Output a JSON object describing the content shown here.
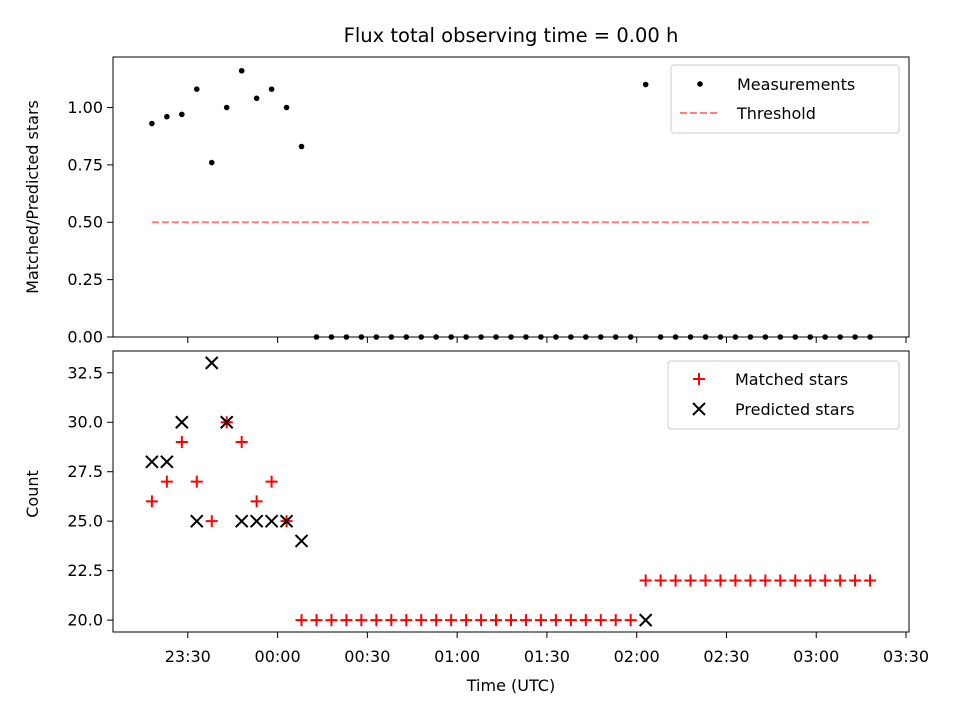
{
  "chart_data": [
    {
      "type": "scatter",
      "title": "Flux total observing time = 0.00 h",
      "xlabel": "",
      "ylabel": "Matched/Predicted stars",
      "x_unit": "UTC time",
      "xlim": [
        "23:05",
        "03:31"
      ],
      "ylim": [
        0,
        1.22
      ],
      "yticks": [
        "0.00",
        "0.25",
        "0.50",
        "0.75",
        "1.00"
      ],
      "ytick_values": [
        0,
        0.25,
        0.5,
        0.75,
        1.0
      ],
      "legend_position": "upper right",
      "series": [
        {
          "name": "Measurements",
          "marker": "dot",
          "color": "#000000",
          "x": [
            "23:18",
            "23:23",
            "23:28",
            "23:33",
            "23:38",
            "23:43",
            "23:48",
            "23:53",
            "23:58",
            "00:03",
            "00:08",
            "00:13",
            "00:18",
            "00:23",
            "00:28",
            "00:33",
            "00:38",
            "00:43",
            "00:48",
            "00:53",
            "00:58",
            "01:03",
            "01:08",
            "01:13",
            "01:18",
            "01:23",
            "01:28",
            "01:33",
            "01:38",
            "01:43",
            "01:48",
            "01:53",
            "01:58",
            "02:03",
            "02:08",
            "02:13",
            "02:18",
            "02:23",
            "02:28",
            "02:33",
            "02:38",
            "02:43",
            "02:48",
            "02:53",
            "02:58",
            "03:03",
            "03:08",
            "03:13",
            "03:18"
          ],
          "y": [
            0.93,
            0.96,
            0.97,
            1.08,
            0.76,
            1.0,
            1.16,
            1.04,
            1.08,
            1.0,
            0.83,
            0,
            0,
            0,
            0,
            0,
            0,
            0,
            0,
            0,
            0,
            0,
            0,
            0,
            0,
            0,
            0,
            0,
            0,
            0,
            0,
            0,
            0,
            1.1,
            0,
            0,
            0,
            0,
            0,
            0,
            0,
            0,
            0,
            0,
            0,
            0,
            0,
            0,
            0
          ]
        },
        {
          "name": "Threshold",
          "style": "dashed",
          "color": "#ff7f7f",
          "x": [
            "23:18",
            "03:18"
          ],
          "y": [
            0.5,
            0.5
          ]
        }
      ]
    },
    {
      "type": "scatter",
      "title": "",
      "xlabel": "Time (UTC)",
      "ylabel": "Count",
      "xlim": [
        "23:05",
        "03:31"
      ],
      "xticks": [
        "23:30",
        "00:00",
        "00:30",
        "01:00",
        "01:30",
        "02:00",
        "02:30",
        "03:00",
        "03:30"
      ],
      "ylim": [
        19.4,
        33.6
      ],
      "yticks": [
        "20.0",
        "22.5",
        "25.0",
        "27.5",
        "30.0",
        "32.5"
      ],
      "ytick_values": [
        20,
        22.5,
        25,
        27.5,
        30,
        32.5
      ],
      "legend_position": "upper right",
      "series": [
        {
          "name": "Matched stars",
          "marker": "plus",
          "color": "#ff0000",
          "x": [
            "23:18",
            "23:23",
            "23:28",
            "23:33",
            "23:38",
            "23:43",
            "23:48",
            "23:53",
            "23:58",
            "00:03",
            "00:08",
            "00:13",
            "00:18",
            "00:23",
            "00:28",
            "00:33",
            "00:38",
            "00:43",
            "00:48",
            "00:53",
            "00:58",
            "01:03",
            "01:08",
            "01:13",
            "01:18",
            "01:23",
            "01:28",
            "01:33",
            "01:38",
            "01:43",
            "01:48",
            "01:53",
            "01:58",
            "02:03",
            "02:08",
            "02:13",
            "02:18",
            "02:23",
            "02:28",
            "02:33",
            "02:38",
            "02:43",
            "02:48",
            "02:53",
            "02:58",
            "03:03",
            "03:08",
            "03:13",
            "03:18"
          ],
          "y": [
            26,
            27,
            29,
            27,
            25,
            30,
            29,
            26,
            27,
            25,
            20,
            20,
            20,
            20,
            20,
            20,
            20,
            20,
            20,
            20,
            20,
            20,
            20,
            20,
            20,
            20,
            20,
            20,
            20,
            20,
            20,
            20,
            20,
            22,
            22,
            22,
            22,
            22,
            22,
            22,
            22,
            22,
            22,
            22,
            22,
            22,
            22,
            22,
            22
          ]
        },
        {
          "name": "Predicted stars",
          "marker": "x",
          "color": "#000000",
          "x": [
            "23:18",
            "23:23",
            "23:28",
            "23:33",
            "23:38",
            "23:43",
            "23:48",
            "23:53",
            "23:58",
            "00:03",
            "00:08",
            "02:03"
          ],
          "y": [
            28,
            28,
            30,
            25,
            33,
            30,
            25,
            25,
            25,
            25,
            24,
            20
          ]
        }
      ]
    }
  ]
}
